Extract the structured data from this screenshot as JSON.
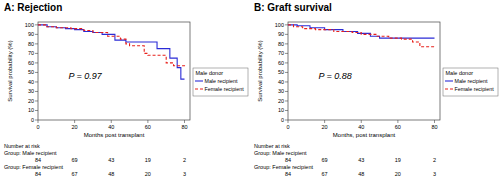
{
  "chart_data": [
    {
      "type": "step",
      "title": "A: Rejection",
      "x_label": "Months post transplant",
      "y_label": "Survival probability (%)",
      "xlim": [
        0,
        83
      ],
      "ylim": [
        0,
        103
      ],
      "xticks": [
        0,
        20,
        40,
        60,
        80
      ],
      "yticks": [
        0,
        10,
        20,
        30,
        40,
        50,
        60,
        70,
        80,
        90,
        100
      ],
      "legend": "right",
      "legend_title": "Male donor",
      "annotation": "P = 0.97",
      "series": [
        {
          "name": "Male recipient",
          "color": "#2b2bd6",
          "line_style": "solid",
          "x": [
            0,
            5,
            10,
            15,
            20,
            25,
            30,
            35,
            42,
            48,
            60,
            65,
            72,
            76,
            78,
            80
          ],
          "values": [
            100,
            98,
            97,
            96,
            95,
            93,
            92,
            90,
            84,
            82,
            82,
            75,
            65,
            55,
            43,
            43
          ]
        },
        {
          "name": "Female recipient",
          "color": "#e8201b",
          "line_style": "dashed",
          "x": [
            0,
            4,
            10,
            18,
            25,
            30,
            38,
            45,
            48,
            50,
            58,
            60,
            70,
            74,
            80
          ],
          "values": [
            100,
            98,
            97,
            96,
            94,
            92,
            88,
            85,
            80,
            78,
            70,
            68,
            60,
            57,
            56
          ]
        }
      ],
      "at_risk": {
        "title": "Number at risk",
        "x": [
          0,
          20,
          40,
          60,
          80
        ],
        "groups": [
          {
            "label": "Group: Male recipient",
            "values": [
              84,
              69,
              43,
              19,
              2
            ]
          },
          {
            "label": "Group: Female recipient",
            "values": [
              84,
              67,
              48,
              20,
              3
            ]
          }
        ]
      }
    },
    {
      "type": "step",
      "title": "B: Graft survival",
      "x_label": "Months, post transplant",
      "y_label": "Survival probability (%)",
      "xlim": [
        0,
        83
      ],
      "ylim": [
        0,
        103
      ],
      "xticks": [
        0,
        20,
        40,
        60,
        80
      ],
      "yticks": [
        0,
        10,
        20,
        30,
        40,
        50,
        60,
        70,
        80,
        90,
        100
      ],
      "legend": "right",
      "legend_title": "Male donor",
      "annotation": "P = 0.88",
      "series": [
        {
          "name": "Male recipient",
          "color": "#2b2bd6",
          "line_style": "solid",
          "x": [
            0,
            5,
            12,
            20,
            30,
            38,
            45,
            50,
            80
          ],
          "values": [
            100,
            99,
            97,
            95,
            93,
            91,
            88,
            86,
            86
          ]
        },
        {
          "name": "Female recipient",
          "color": "#e8201b",
          "line_style": "dashed",
          "x": [
            0,
            3,
            8,
            15,
            25,
            35,
            40,
            48,
            55,
            62,
            68,
            72,
            80
          ],
          "values": [
            100,
            98,
            96,
            95,
            93,
            92,
            90,
            88,
            86,
            85,
            82,
            77,
            77
          ]
        }
      ],
      "at_risk": {
        "title": "Number at risk",
        "x": [
          0,
          20,
          40,
          60,
          80
        ],
        "groups": [
          {
            "label": "Group: Male recipient",
            "values": [
              84,
              69,
              43,
              19,
              2
            ]
          },
          {
            "label": "Group: Female recipient",
            "values": [
              84,
              67,
              48,
              20,
              3
            ]
          }
        ]
      }
    }
  ]
}
